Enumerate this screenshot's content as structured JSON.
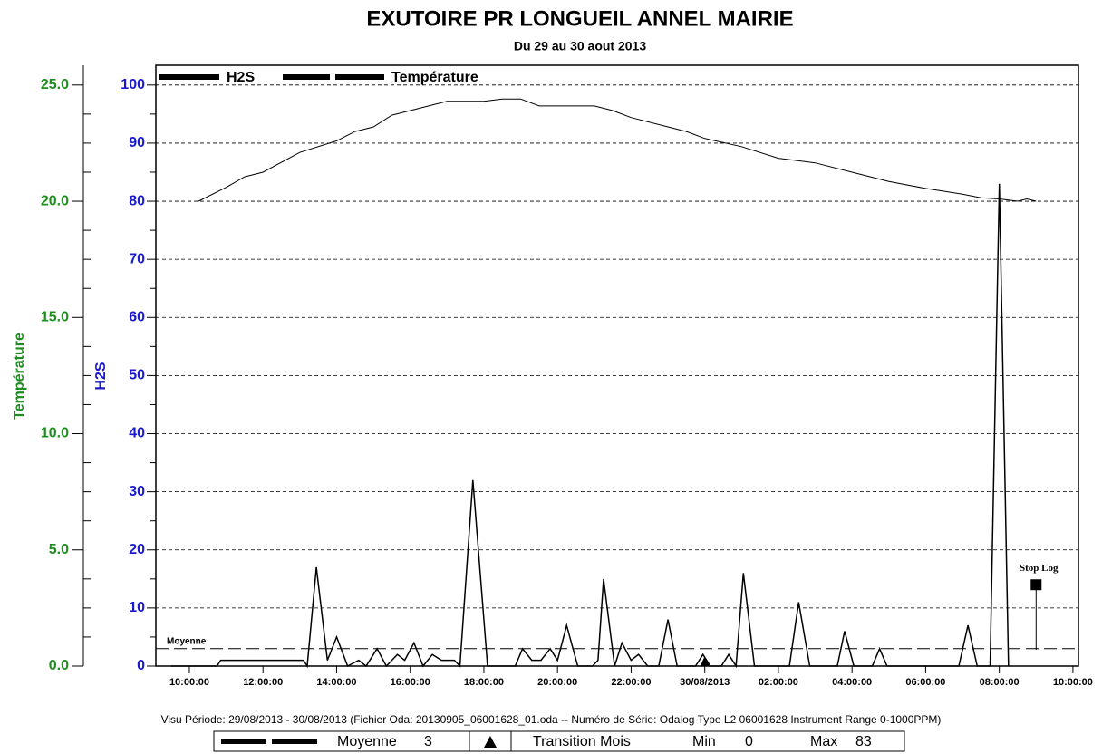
{
  "chart_data": {
    "type": "line",
    "title": "EXUTOIRE PR LONGUEIL ANNEL MAIRIE",
    "subtitle": "Du 29 au 30 aout 2013",
    "ylabel": "H2S",
    "y2label": "Température",
    "xlim": [
      9.09,
      34.15
    ],
    "xticks": [
      {
        "value": 10,
        "label": "10:00:00"
      },
      {
        "value": 12,
        "label": "12:00:00"
      },
      {
        "value": 14,
        "label": "14:00:00"
      },
      {
        "value": 16,
        "label": "16:00:00"
      },
      {
        "value": 18,
        "label": "18:00:00"
      },
      {
        "value": 20,
        "label": "20:00:00"
      },
      {
        "value": 22,
        "label": "22:00:00"
      },
      {
        "value": 24,
        "label": "30/08/2013"
      },
      {
        "value": 26,
        "label": "02:00:00"
      },
      {
        "value": 28,
        "label": "04:00:00"
      },
      {
        "value": 30,
        "label": "06:00:00"
      },
      {
        "value": 32,
        "label": "08:00:00"
      },
      {
        "value": 34,
        "label": "10:00:00"
      }
    ],
    "ylim": [
      0,
      103.4
    ],
    "yticks": [
      0,
      10,
      20,
      30,
      40,
      50,
      60,
      70,
      80,
      90,
      100
    ],
    "y2lim": [
      0,
      25.85
    ],
    "y2ticks": [
      {
        "value": 0,
        "label": "0.0"
      },
      {
        "value": 5,
        "label": "5.0"
      },
      {
        "value": 10,
        "label": "10.0"
      },
      {
        "value": 15,
        "label": "15.0"
      },
      {
        "value": 20,
        "label": "20.0"
      },
      {
        "value": 25,
        "label": "25.0"
      }
    ],
    "grid": true,
    "legend": "top-left",
    "series": [
      {
        "name": "H2S",
        "color": "#000000",
        "label_color": "#1a1acc",
        "x": [
          9.5,
          10.75,
          10.85,
          13.1,
          13.2,
          13.45,
          13.75,
          14.0,
          14.3,
          14.6,
          14.8,
          15.1,
          15.35,
          15.65,
          15.85,
          16.1,
          16.35,
          16.6,
          16.85,
          17.2,
          17.35,
          17.7,
          18.1,
          18.85,
          19.05,
          19.3,
          19.55,
          19.8,
          20.0,
          20.25,
          20.55,
          20.95,
          21.1,
          21.25,
          21.55,
          21.75,
          22.0,
          22.2,
          22.45,
          22.75,
          23.0,
          23.25,
          23.75,
          23.95,
          24.15,
          24.45,
          24.65,
          24.85,
          25.05,
          25.35,
          26.3,
          26.55,
          26.85,
          27.6,
          27.8,
          28.05,
          28.55,
          28.75,
          28.95,
          30.9,
          31.15,
          31.4,
          31.75,
          32.0,
          32.25
        ],
        "values": [
          0,
          0,
          1,
          1,
          0,
          17,
          1,
          5,
          0,
          1,
          0,
          3,
          0,
          2,
          1,
          4,
          0,
          2,
          1,
          1,
          0,
          32,
          0,
          0,
          3,
          1,
          1,
          3,
          1,
          7,
          0,
          0,
          1,
          15,
          0,
          4,
          1,
          2,
          0,
          0,
          8,
          0,
          0,
          2,
          0,
          0,
          2,
          0,
          16,
          0,
          0,
          11,
          0,
          0,
          6,
          0,
          0,
          3,
          0,
          0,
          7,
          0,
          0,
          83,
          0
        ]
      },
      {
        "name": "Température",
        "color": "#000000",
        "label_color": "#1e8c1e",
        "axis": "y2",
        "x": [
          10.25,
          11.0,
          11.5,
          12.0,
          13.0,
          14.0,
          14.5,
          15.0,
          15.5,
          16.5,
          17.0,
          18.0,
          18.5,
          19.0,
          19.5,
          21.0,
          21.5,
          22.0,
          23.0,
          23.5,
          24.0,
          25.0,
          26.0,
          27.0,
          28.0,
          29.0,
          30.0,
          31.0,
          31.5,
          32.0,
          32.5,
          32.75,
          33.0
        ],
        "values": [
          20.0,
          20.6,
          21.05,
          21.25,
          22.1,
          22.6,
          23.0,
          23.2,
          23.7,
          24.1,
          24.3,
          24.3,
          24.4,
          24.4,
          24.1,
          24.1,
          23.9,
          23.6,
          23.2,
          23.0,
          22.7,
          22.35,
          21.85,
          21.65,
          21.25,
          20.85,
          20.55,
          20.3,
          20.15,
          20.1,
          20.0,
          20.1,
          20.0
        ]
      }
    ],
    "mean": {
      "label": "Moyenne",
      "value": 3
    },
    "stop_log": {
      "label": "Stop Log",
      "x": 33.0,
      "value": 14
    },
    "transition": {
      "label": "Transition Mois",
      "x": 24
    },
    "summary": {
      "min_label": "Min",
      "min": 0,
      "max_label": "Max",
      "max": 83
    },
    "note": "Visu Période: 29/08/2013 - 30/08/2013  (Fichier Oda: 20130905_06001628_01.oda  --  Numéro de Série: Odalog Type L2 06001628 Instrument Range 0-1000PPM)"
  }
}
